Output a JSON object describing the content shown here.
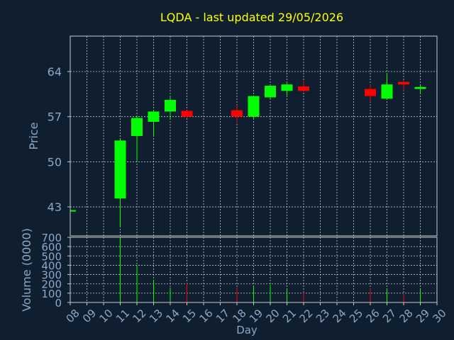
{
  "colors": {
    "background": "#0f1f30",
    "frame": "#c8c8c8",
    "grid": "#c8c8c8",
    "title": "#ffff00",
    "axis_text": "#8ba8c8",
    "up": "#00ff00",
    "down": "#ff0000"
  },
  "chart_data": [
    {
      "type": "candlestick",
      "title": "LQDA - last updated 29/05/2026",
      "ylabel": "Price",
      "ylim": [
        38.5,
        69.5
      ],
      "yticks": [
        43,
        50,
        57,
        64
      ],
      "grid": true,
      "xlim": [
        8,
        30
      ],
      "candles": [
        {
          "day": 8,
          "open": 42.3,
          "high": 42.5,
          "low": 41.9,
          "close": 42.5
        },
        {
          "day": 11,
          "open": 44.3,
          "high": 53.5,
          "low": 39.8,
          "close": 53.3
        },
        {
          "day": 12,
          "open": 54.0,
          "high": 57.0,
          "low": 50.2,
          "close": 56.8
        },
        {
          "day": 13,
          "open": 56.2,
          "high": 58.0,
          "low": 54.0,
          "close": 57.8
        },
        {
          "day": 14,
          "open": 57.8,
          "high": 60.0,
          "low": 56.6,
          "close": 59.6
        },
        {
          "day": 15,
          "open": 57.9,
          "high": 58.0,
          "low": 56.8,
          "close": 57.0
        },
        {
          "day": 18,
          "open": 58.0,
          "high": 58.8,
          "low": 56.0,
          "close": 57.0
        },
        {
          "day": 19,
          "open": 57.0,
          "high": 60.2,
          "low": 56.6,
          "close": 60.2
        },
        {
          "day": 20,
          "open": 60.0,
          "high": 61.8,
          "low": 59.8,
          "close": 61.8
        },
        {
          "day": 21,
          "open": 61.0,
          "high": 62.2,
          "low": 60.3,
          "close": 62.0
        },
        {
          "day": 22,
          "open": 61.7,
          "high": 62.6,
          "low": 60.8,
          "close": 61.0
        },
        {
          "day": 26,
          "open": 61.3,
          "high": 62.0,
          "low": 59.3,
          "close": 60.2
        },
        {
          "day": 27,
          "open": 59.8,
          "high": 63.8,
          "low": 59.6,
          "close": 62.0
        },
        {
          "day": 28,
          "open": 62.4,
          "high": 62.6,
          "low": 61.0,
          "close": 62.0
        },
        {
          "day": 29,
          "open": 61.3,
          "high": 61.9,
          "low": 60.6,
          "close": 61.6
        }
      ]
    },
    {
      "type": "bar",
      "ylabel": "Volume (0000)",
      "xlabel": "Day",
      "ylim": [
        0,
        700
      ],
      "yticks": [
        0,
        100,
        200,
        300,
        400,
        500,
        600,
        700
      ],
      "xticks": [
        "08",
        "09",
        "10",
        "11",
        "12",
        "13",
        "14",
        "15",
        "16",
        "17",
        "18",
        "19",
        "20",
        "21",
        "22",
        "23",
        "24",
        "25",
        "26",
        "27",
        "28",
        "29",
        "30"
      ],
      "grid": true,
      "xlim": [
        8,
        30
      ],
      "bars": [
        {
          "day": 8,
          "value": 5,
          "direction": "up"
        },
        {
          "day": 11,
          "value": 700,
          "direction": "up"
        },
        {
          "day": 12,
          "value": 400,
          "direction": "up"
        },
        {
          "day": 13,
          "value": 240,
          "direction": "up"
        },
        {
          "day": 14,
          "value": 160,
          "direction": "up"
        },
        {
          "day": 15,
          "value": 210,
          "direction": "down"
        },
        {
          "day": 18,
          "value": 160,
          "direction": "down"
        },
        {
          "day": 19,
          "value": 170,
          "direction": "up"
        },
        {
          "day": 20,
          "value": 190,
          "direction": "up"
        },
        {
          "day": 21,
          "value": 140,
          "direction": "up"
        },
        {
          "day": 22,
          "value": 110,
          "direction": "down"
        },
        {
          "day": 26,
          "value": 150,
          "direction": "down"
        },
        {
          "day": 27,
          "value": 140,
          "direction": "up"
        },
        {
          "day": 28,
          "value": 90,
          "direction": "down"
        },
        {
          "day": 29,
          "value": 140,
          "direction": "up"
        }
      ]
    }
  ]
}
